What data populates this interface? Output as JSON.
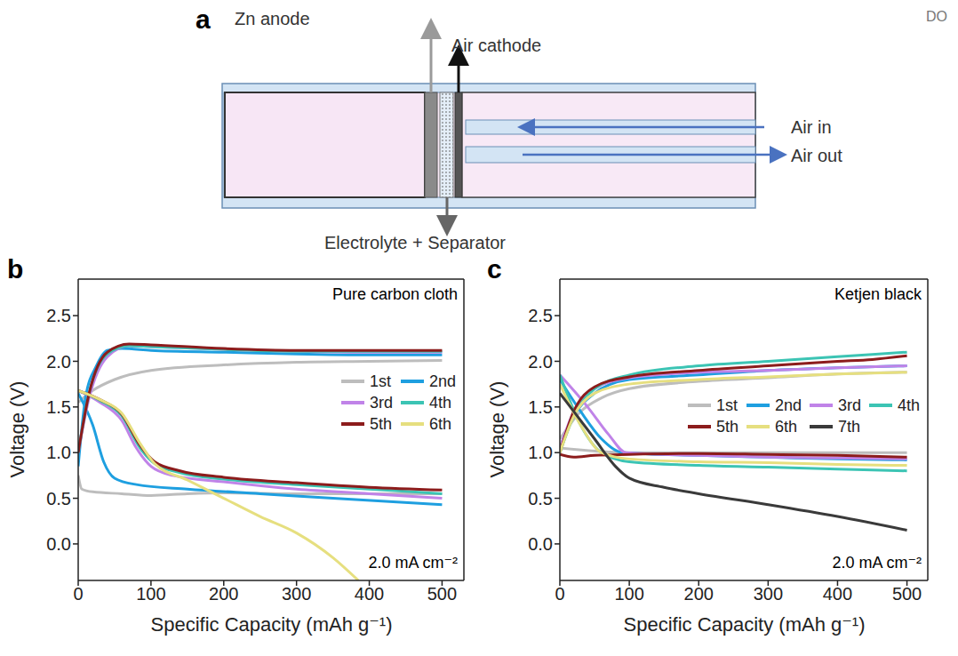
{
  "corner_text": "DO",
  "diagram": {
    "panel": "a",
    "zn_anode": "Zn anode",
    "air_cathode": "Air cathode",
    "air_in": "Air in",
    "air_out": "Air out",
    "electrolyte": "Electrolyte + Separator"
  },
  "chart_data": [
    {
      "type": "line",
      "panel": "b",
      "title": "Pure carbon cloth",
      "annotations": [
        "2.0 mA cm⁻²"
      ],
      "x_label": "Specific Capacity (mAh g⁻¹)",
      "y_label": "Voltage (V)",
      "xlim": [
        0,
        530
      ],
      "xticks": [
        0,
        100,
        200,
        300,
        400,
        500
      ],
      "ylim": [
        -0.4,
        2.9
      ],
      "yticks": [
        {
          "value": 0,
          "label": "0.0"
        },
        0.5,
        {
          "value": 1,
          "label": "1.0"
        },
        1.5,
        {
          "value": 2,
          "label": "2.0"
        },
        2.5
      ],
      "grid": false,
      "legend": "right",
      "series": [
        {
          "name": "1st",
          "color": "#bdbdbd",
          "x": [
            0,
            5,
            20,
            60,
            100,
            150,
            200,
            300,
            400,
            500,
            null,
            0,
            20,
            50,
            100,
            200,
            300,
            400,
            500
          ],
          "values": [
            0.75,
            0.6,
            0.57,
            0.55,
            0.53,
            0.55,
            0.56,
            0.55,
            0.55,
            0.55,
            null,
            1.55,
            1.68,
            1.8,
            1.9,
            1.96,
            1.99,
            2.0,
            2.01
          ]
        },
        {
          "name": "2nd",
          "color": "#1e9fe0",
          "x": [
            0,
            20,
            35,
            50,
            80,
            150,
            250,
            350,
            500,
            null,
            0,
            10,
            25,
            40,
            60,
            100,
            200,
            300,
            400,
            500
          ],
          "values": [
            1.65,
            1.3,
            0.9,
            0.72,
            0.65,
            0.6,
            0.55,
            0.5,
            0.43,
            null,
            0.85,
            1.6,
            1.95,
            2.12,
            2.14,
            2.12,
            2.1,
            2.08,
            2.07,
            2.07
          ]
        },
        {
          "name": "3rd",
          "color": "#c083e8",
          "x": [
            0,
            30,
            60,
            80,
            100,
            130,
            200,
            300,
            400,
            500,
            null,
            0,
            15,
            40,
            70,
            100,
            200,
            300,
            400,
            500
          ],
          "values": [
            1.68,
            1.55,
            1.35,
            1.05,
            0.85,
            0.75,
            0.68,
            0.6,
            0.55,
            0.5,
            null,
            1.0,
            1.6,
            2.05,
            2.17,
            2.16,
            2.13,
            2.11,
            2.1,
            2.1
          ]
        },
        {
          "name": "4th",
          "color": "#3cc4b4",
          "x": [
            0,
            30,
            60,
            85,
            105,
            140,
            200,
            300,
            400,
            500,
            null,
            0,
            15,
            40,
            70,
            100,
            200,
            300,
            400,
            500
          ],
          "values": [
            1.68,
            1.57,
            1.4,
            1.05,
            0.88,
            0.78,
            0.71,
            0.65,
            0.6,
            0.55,
            null,
            1.0,
            1.65,
            2.08,
            2.17,
            2.16,
            2.13,
            2.11,
            2.11,
            2.11
          ]
        },
        {
          "name": "5th",
          "color": "#8c1c1c",
          "x": [
            0,
            30,
            60,
            85,
            105,
            140,
            200,
            300,
            400,
            500,
            null,
            0,
            15,
            40,
            70,
            100,
            200,
            300,
            400,
            500
          ],
          "values": [
            1.68,
            1.58,
            1.42,
            1.08,
            0.9,
            0.8,
            0.73,
            0.67,
            0.62,
            0.59,
            null,
            1.0,
            1.65,
            2.1,
            2.19,
            2.18,
            2.14,
            2.12,
            2.12,
            2.12
          ]
        },
        {
          "name": "6th",
          "color": "#e6df7f",
          "x": [
            0,
            30,
            60,
            85,
            105,
            150,
            200,
            250,
            300,
            350,
            385
          ],
          "values": [
            1.68,
            1.58,
            1.43,
            1.1,
            0.88,
            0.7,
            0.5,
            0.3,
            0.12,
            -0.15,
            -0.4
          ]
        }
      ]
    },
    {
      "type": "line",
      "panel": "c",
      "title": "Ketjen black",
      "annotations": [
        "2.0 mA cm⁻²"
      ],
      "x_label": "Specific Capacity (mAh g⁻¹)",
      "y_label": "Voltage (V)",
      "xlim": [
        0,
        530
      ],
      "xticks": [
        0,
        100,
        200,
        300,
        400,
        500
      ],
      "ylim": [
        -0.4,
        2.9
      ],
      "yticks": [
        {
          "value": 0,
          "label": "0.0"
        },
        0.5,
        {
          "value": 1,
          "label": "1.0"
        },
        1.5,
        {
          "value": 2,
          "label": "2.0"
        },
        2.5
      ],
      "grid": false,
      "legend": "right",
      "series": [
        {
          "name": "1st",
          "color": "#bdbdbd",
          "x": [
            0,
            100,
            200,
            300,
            400,
            500,
            null,
            0,
            30,
            60,
            100,
            200,
            300,
            400,
            500
          ],
          "values": [
            1.05,
            1.0,
            1.0,
            1.0,
            1.0,
            1.0,
            null,
            1.15,
            1.45,
            1.6,
            1.7,
            1.78,
            1.82,
            1.86,
            1.88
          ]
        },
        {
          "name": "2nd",
          "color": "#1e9fe0",
          "x": [
            0,
            30,
            60,
            90,
            200,
            300,
            400,
            500,
            null,
            0,
            20,
            50,
            100,
            200,
            300,
            400,
            500
          ],
          "values": [
            1.8,
            1.45,
            1.15,
            1.0,
            0.97,
            0.95,
            0.93,
            0.92,
            null,
            1.05,
            1.4,
            1.65,
            1.8,
            1.85,
            1.9,
            1.93,
            1.95
          ]
        },
        {
          "name": "3rd",
          "color": "#c083e8",
          "x": [
            0,
            40,
            70,
            95,
            200,
            300,
            400,
            500,
            null,
            0,
            20,
            50,
            100,
            200,
            300,
            400,
            500
          ],
          "values": [
            1.85,
            1.5,
            1.2,
            1.0,
            0.97,
            0.95,
            0.94,
            0.93,
            null,
            1.05,
            1.45,
            1.7,
            1.82,
            1.88,
            1.9,
            1.93,
            1.95
          ]
        },
        {
          "name": "4th",
          "color": "#3cc4b4",
          "x": [
            0,
            30,
            60,
            100,
            200,
            300,
            400,
            500,
            null,
            0,
            20,
            50,
            100,
            200,
            300,
            400,
            500
          ],
          "values": [
            1.85,
            1.3,
            1.0,
            0.9,
            0.86,
            0.84,
            0.82,
            0.8,
            null,
            1.0,
            1.4,
            1.7,
            1.85,
            1.95,
            2.0,
            2.05,
            2.1
          ]
        },
        {
          "name": "5th",
          "color": "#8c1c1c",
          "x": [
            0,
            20,
            50,
            100,
            200,
            300,
            400,
            500,
            null,
            0,
            20,
            50,
            100,
            200,
            300,
            400,
            450,
            500
          ],
          "values": [
            0.98,
            0.95,
            0.97,
            0.98,
            0.99,
            0.98,
            0.97,
            0.95,
            null,
            1.0,
            1.45,
            1.72,
            1.83,
            1.9,
            1.95,
            2.0,
            2.02,
            2.06
          ]
        },
        {
          "name": "6th",
          "color": "#e6df7f",
          "x": [
            0,
            30,
            60,
            100,
            200,
            300,
            400,
            500,
            null,
            0,
            20,
            50,
            100,
            200,
            300,
            400,
            500
          ],
          "values": [
            1.75,
            1.3,
            1.0,
            0.93,
            0.9,
            0.89,
            0.87,
            0.86,
            null,
            1.0,
            1.4,
            1.65,
            1.75,
            1.8,
            1.83,
            1.86,
            1.88
          ]
        },
        {
          "name": "7th",
          "color": "#3a3a3a",
          "x": [
            0,
            20,
            50,
            80,
            100,
            150,
            200,
            300,
            400,
            500
          ],
          "values": [
            1.65,
            1.45,
            1.15,
            0.85,
            0.72,
            0.62,
            0.55,
            0.43,
            0.3,
            0.15
          ]
        }
      ]
    }
  ]
}
